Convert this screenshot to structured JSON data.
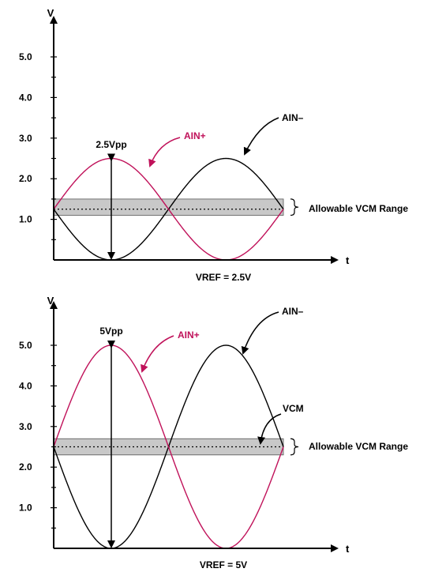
{
  "colors": {
    "axis": "#000000",
    "ain_minus": "#000000",
    "ain_plus": "#c0125a",
    "vcm_band_fill": "#c8c8c8",
    "vcm_band_stroke": "#555555"
  },
  "panels": [
    {
      "y_axis_label": "V",
      "x_axis_label": "t",
      "tick_labels": [
        "5.0",
        "4.0",
        "3.0",
        "2.0",
        "1.0"
      ],
      "tick_values": [
        5.0,
        4.0,
        3.0,
        2.0,
        1.0
      ],
      "amplitude_label": "2.5Vpp",
      "ain_plus_label": "AIN+",
      "ain_minus_label": "AIN–",
      "vcm_label": "",
      "range_label": "Allowable VCM Range",
      "caption": "VREF = 2.5V",
      "vref": 2.5,
      "vcm": 1.25,
      "vcm_band": [
        1.1,
        1.5
      ]
    },
    {
      "y_axis_label": "V",
      "x_axis_label": "t",
      "tick_labels": [
        "5.0",
        "4.0",
        "3.0",
        "2.0",
        "1.0"
      ],
      "tick_values": [
        5.0,
        4.0,
        3.0,
        2.0,
        1.0
      ],
      "amplitude_label": "5Vpp",
      "ain_plus_label": "AIN+",
      "ain_minus_label": "AIN–",
      "vcm_label": "VCM",
      "range_label": "Allowable VCM Range",
      "caption": "VREF = 5V",
      "vref": 5.0,
      "vcm": 2.5,
      "vcm_band": [
        2.3,
        2.7
      ]
    }
  ]
}
